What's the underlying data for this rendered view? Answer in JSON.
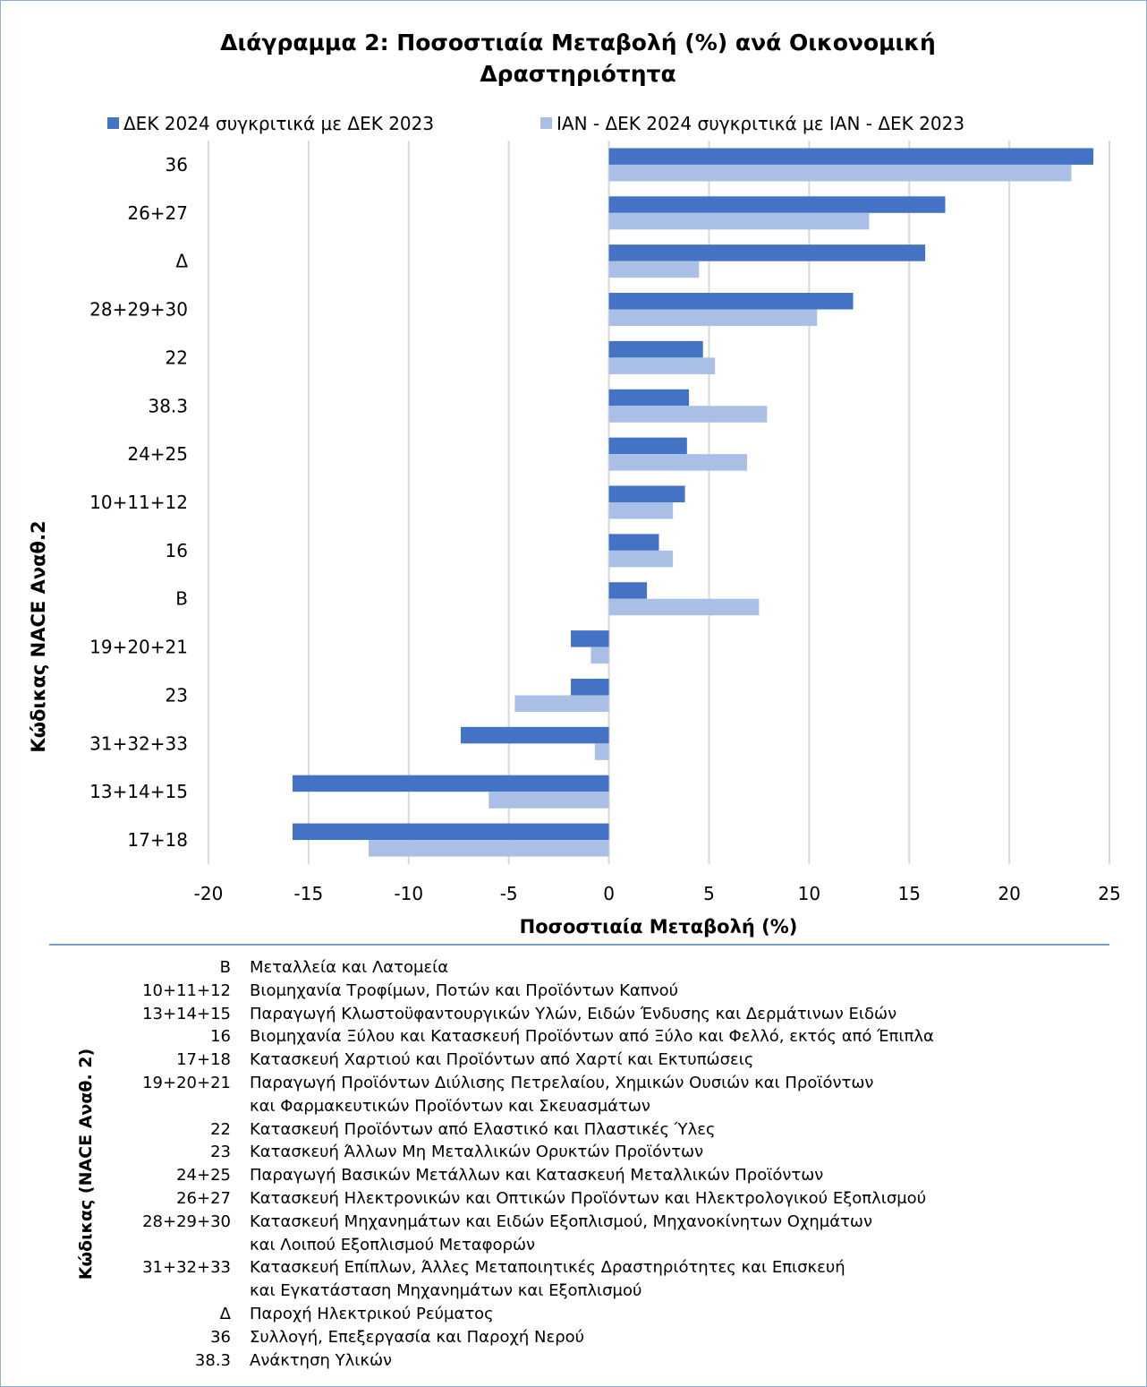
{
  "chart_data": {
    "type": "bar",
    "orientation": "horizontal",
    "title": "Διάγραμμα 2: Ποσοστιαία Μεταβολή (%) ανά Οικονομική Δραστηριότητα",
    "title_lines": [
      "Διάγραμμα 2: Ποσοστιαία Μεταβολή (%) ανά Οικονομική",
      "Δραστηριότητα"
    ],
    "xlabel": "Ποσοστιαία Μεταβολή (%)",
    "ylabel": "Κώδικας NACE Αναθ.2",
    "xlim": [
      -20,
      25
    ],
    "xticks": [
      -20,
      -15,
      -10,
      -5,
      0,
      5,
      10,
      15,
      20,
      25
    ],
    "grid": "vertical",
    "legend_position": "top",
    "categories": [
      "36",
      "26+27",
      "Δ",
      "28+29+30",
      "22",
      "38.3",
      "24+25",
      "10+11+12",
      "16",
      "B",
      "19+20+21",
      "23",
      "31+32+33",
      "13+14+15",
      "17+18"
    ],
    "series": [
      {
        "name": "ΔΕΚ 2024 συγκριτικά με ΔΕΚ 2023",
        "color": "#4472c4",
        "values": [
          24.2,
          16.8,
          15.8,
          12.2,
          4.7,
          4.0,
          3.9,
          3.8,
          2.5,
          1.9,
          -1.9,
          -1.9,
          -7.4,
          -15.8,
          -15.8
        ]
      },
      {
        "name": "ΙΑΝ - ΔΕΚ 2024 συγκριτικά με ΙΑΝ - ΔΕΚ 2023",
        "color": "#a9bfe6",
        "values": [
          23.1,
          13.0,
          4.5,
          10.4,
          5.3,
          7.9,
          6.9,
          3.2,
          3.2,
          7.5,
          -0.9,
          -4.7,
          -0.7,
          -6.0,
          -12.0
        ]
      }
    ]
  },
  "glossary": {
    "heading": "Κώδικας (NACE Αναθ. 2)",
    "rows": [
      {
        "code": "B",
        "lines": [
          "Μεταλλεία και Λατομεία"
        ]
      },
      {
        "code": "10+11+12",
        "lines": [
          "Βιομηχανία Τροφίμων, Ποτών και Προϊόντων Καπνού"
        ]
      },
      {
        "code": "13+14+15",
        "lines": [
          "Παραγωγή Κλωστοϋφαντουργικών Υλών, Ειδών Ένδυσης και Δερμάτινων Ειδών"
        ]
      },
      {
        "code": "16",
        "lines": [
          "Βιομηχανία Ξύλου και Κατασκευή Προϊόντων από Ξύλο και Φελλό, εκτός από Έπιπλα"
        ]
      },
      {
        "code": "17+18",
        "lines": [
          "Κατασκευή Χαρτιού και Προϊόντων από Χαρτί και Εκτυπώσεις"
        ]
      },
      {
        "code": "19+20+21",
        "lines": [
          "Παραγωγή Προϊόντων Διύλισης Πετρελαίου, Χημικών Ουσιών και Προϊόντων",
          "και Φαρμακευτικών Προϊόντων και Σκευασμάτων"
        ]
      },
      {
        "code": "22",
        "lines": [
          "Κατασκευή Προϊόντων από Ελαστικό και Πλαστικές Ύλες"
        ]
      },
      {
        "code": "23",
        "lines": [
          "Κατασκευή Άλλων Μη Μεταλλικών Ορυκτών Προϊόντων"
        ]
      },
      {
        "code": "24+25",
        "lines": [
          "Παραγωγή Βασικών Μετάλλων και Κατασκευή Μεταλλικών Προϊόντων"
        ]
      },
      {
        "code": "26+27",
        "lines": [
          "Κατασκευή Ηλεκτρονικών και Οπτικών Προϊόντων και Ηλεκτρολογικού Εξοπλισμού"
        ]
      },
      {
        "code": "28+29+30",
        "lines": [
          "Κατασκευή Μηχανημάτων και Ειδών Εξοπλισμού, Μηχανοκίνητων Οχημάτων",
          "και Λοιπού Εξοπλισμού Μεταφορών"
        ]
      },
      {
        "code": "31+32+33",
        "lines": [
          "Κατασκευή Επίπλων, Άλλες Μεταποιητικές Δραστηριότητες και Επισκευή",
          "και Εγκατάσταση Μηχανημάτων και Εξοπλισμού"
        ]
      },
      {
        "code": "Δ",
        "lines": [
          "Παροχή Ηλεκτρικού Ρεύματος"
        ]
      },
      {
        "code": "36",
        "lines": [
          "Συλλογή, Επεξεργασία και Παροχή Νερού"
        ]
      },
      {
        "code": "38.3",
        "lines": [
          "Ανάκτηση Υλικών"
        ]
      }
    ]
  }
}
